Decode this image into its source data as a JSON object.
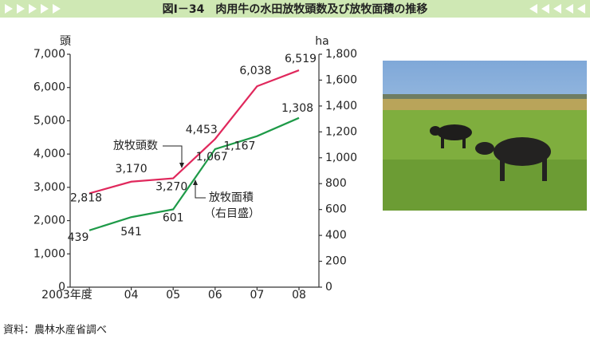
{
  "chart_data": {
    "type": "line",
    "title": "図Ⅰ－34　肉用牛の水田放牧頭数及び放牧面積の推移",
    "source": "資料：農林水産省調べ",
    "y_unit": "頭",
    "y2_unit": "ha",
    "categories": [
      "2003年度",
      "04",
      "05",
      "06",
      "07",
      "08"
    ],
    "series": [
      {
        "name": "放牧頭数",
        "color": "#e0285c",
        "values": [
          2818,
          3170,
          3270,
          4453,
          6038,
          6519
        ],
        "value_labels": [
          "2,818",
          "3,170",
          "3,270",
          "4,453",
          "6,038",
          "6,519"
        ]
      },
      {
        "name": "放牧面積",
        "axis": "y2",
        "note": "（右目盛）",
        "color": "#1e9a48",
        "values": [
          439,
          541,
          601,
          1067,
          1167,
          1308
        ],
        "value_labels": [
          "439",
          "541",
          "601",
          "1,067",
          "1,167",
          "1,308"
        ]
      }
    ],
    "ylim": [
      0,
      7000
    ],
    "yticks": [
      0,
      {
        "value": 1000,
        "label": "1,000"
      },
      {
        "value": 2000,
        "label": "2,000"
      },
      {
        "value": 3000,
        "label": "3,000"
      },
      {
        "value": 4000,
        "label": "4,000"
      },
      {
        "value": 5000,
        "label": "5,000"
      },
      {
        "value": 6000,
        "label": "6,000"
      },
      {
        "value": 7000,
        "label": "7,000"
      }
    ],
    "y2lim": [
      0,
      1800
    ],
    "y2ticks": [
      0,
      200,
      400,
      600,
      800,
      {
        "value": 1000,
        "label": "1,000"
      },
      {
        "value": 1200,
        "label": "1,200"
      },
      {
        "value": 1400,
        "label": "1,400"
      },
      {
        "value": 1600,
        "label": "1,600"
      },
      {
        "value": 1800,
        "label": "1,800"
      }
    ]
  }
}
